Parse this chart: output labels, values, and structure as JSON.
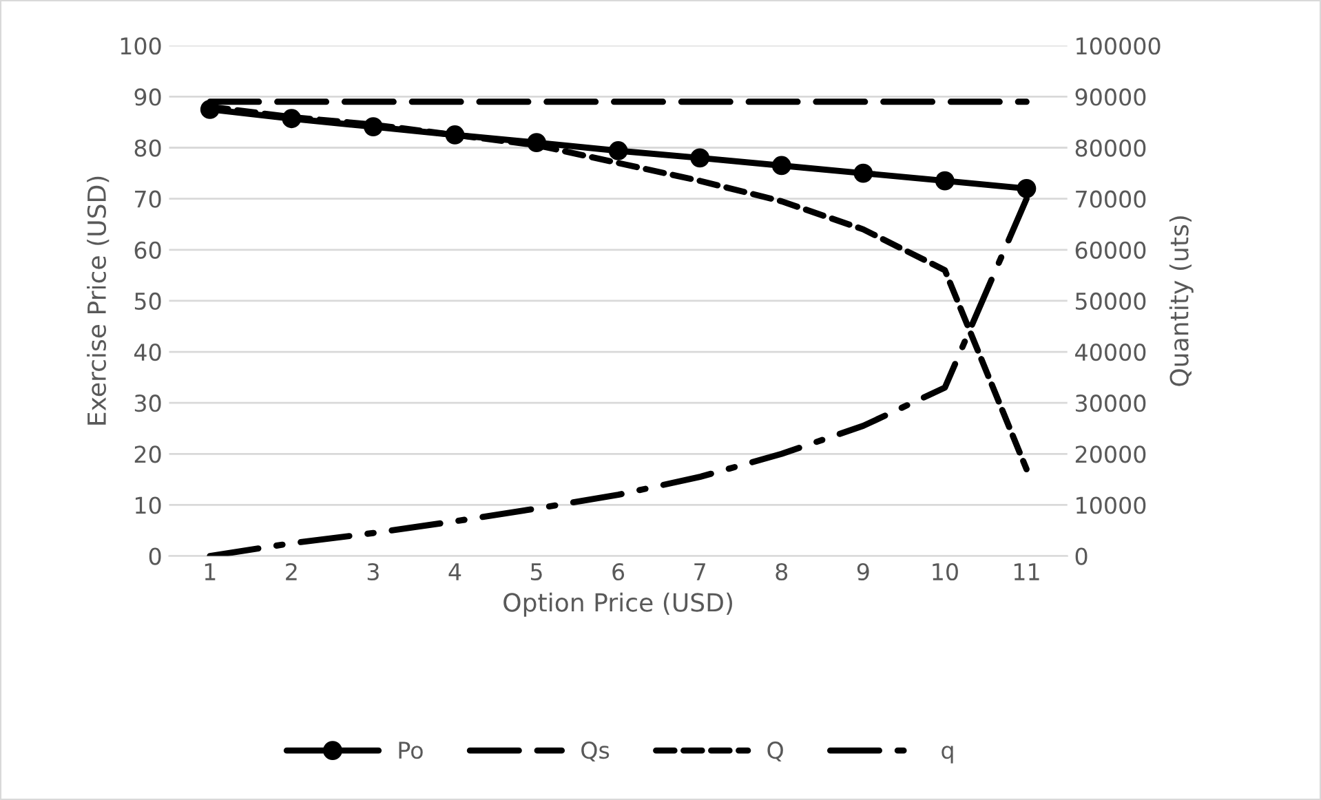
{
  "chart_data": {
    "type": "line",
    "xlabel": "Option Price (USD)",
    "ylabel": "Exercise Price (USD)",
    "y2label": "Quantity (uts)",
    "categories": [
      "1",
      "2",
      "3",
      "4",
      "5",
      "6",
      "7",
      "8",
      "9",
      "10",
      "11"
    ],
    "ylim": [
      0,
      100
    ],
    "yticks": [
      0,
      10,
      20,
      30,
      40,
      50,
      60,
      70,
      80,
      90,
      100
    ],
    "y2lim": [
      0,
      100000
    ],
    "y2ticks": [
      0,
      10000,
      20000,
      30000,
      40000,
      50000,
      60000,
      70000,
      80000,
      90000,
      100000
    ],
    "grid": "y",
    "legend": "bottom",
    "series": [
      {
        "name": "Po",
        "color": "#000000",
        "marker": "circle",
        "line_style": "solid",
        "values": [
          87.5,
          85.7,
          84.1,
          82.5,
          81.0,
          79.4,
          78.0,
          76.5,
          75.0,
          73.5,
          72.0
        ]
      },
      {
        "name": "Qs",
        "color": "#000000",
        "marker": "none",
        "line_style": "long_dash",
        "axis": "y2",
        "values": [
          89000,
          89000,
          89000,
          89000,
          89000,
          89000,
          89000,
          89000,
          89000,
          89000,
          89000
        ]
      },
      {
        "name": "Q",
        "color": "#000000",
        "marker": "none",
        "line_style": "dashed",
        "axis": "y2",
        "values": [
          88000,
          86000,
          84500,
          82500,
          80500,
          77000,
          73500,
          69500,
          64000,
          56000,
          17000
        ]
      },
      {
        "name": "q",
        "color": "#000000",
        "marker": "none",
        "line_style": "long_dash_dot",
        "axis": "y2",
        "values": [
          0,
          2500,
          4500,
          6800,
          9300,
          12000,
          15500,
          20000,
          25500,
          33000,
          70000
        ]
      }
    ]
  }
}
